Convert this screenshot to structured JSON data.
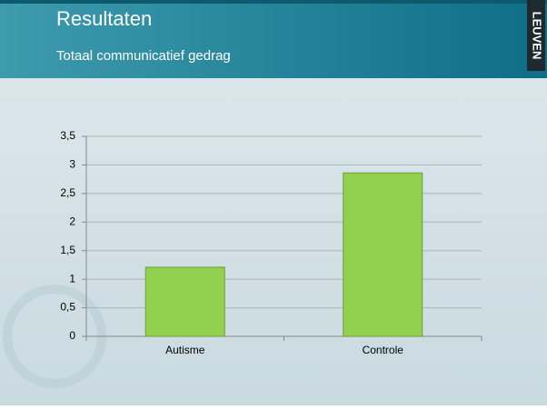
{
  "slide": {
    "logo": "LEUVEN"
  },
  "chart_data": {
    "type": "bar",
    "title": "Resultaten",
    "subtitle": "Totaal communicatief gedrag",
    "categories": [
      "Autisme",
      "Controle"
    ],
    "values": [
      1.21,
      2.86
    ],
    "color": "#92d050",
    "ylim": [
      0,
      3.5
    ],
    "yticks": [
      0,
      {
        "value": 0.5,
        "label": "0,5"
      },
      1,
      {
        "value": 1.5,
        "label": "1,5"
      },
      2,
      {
        "value": 2.5,
        "label": "2,5"
      },
      3,
      {
        "value": 3.5,
        "label": "3,5"
      }
    ],
    "grid": true
  }
}
